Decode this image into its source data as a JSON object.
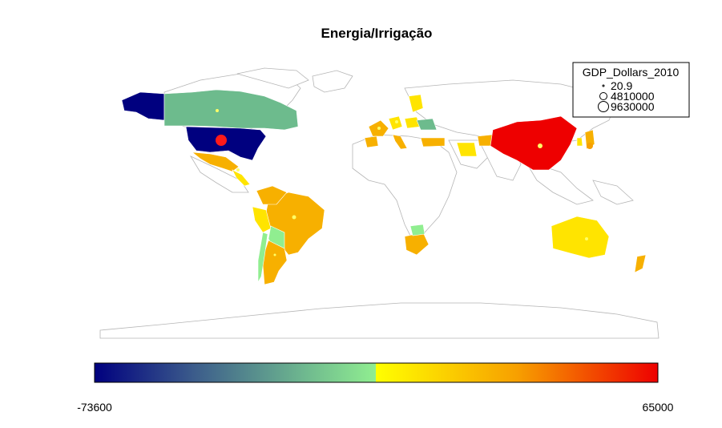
{
  "title": "Energia/Irrigação",
  "legend": {
    "title": "GDP_Dollars_2010",
    "entries": [
      "20.9",
      "4810000",
      "9630000"
    ]
  },
  "colorbar": {
    "min_label": "-73600",
    "max_label": "65000",
    "gradient_low": [
      "#00007f",
      "#3b5b8b",
      "#6fb98f",
      "#90ee90"
    ],
    "gradient_high": [
      "#ffff00",
      "#f7a000",
      "#ee0000"
    ]
  },
  "colors": {
    "dark_blue": "#00007f",
    "green": "#6dbb8d",
    "light_green": "#90ee90",
    "yellow": "#ffe400",
    "orange": "#f7b000",
    "red": "#ee0000",
    "bubble": "#ffff66",
    "bubble_large": "#ff1a1a",
    "outline": "#b5b5b5"
  }
}
